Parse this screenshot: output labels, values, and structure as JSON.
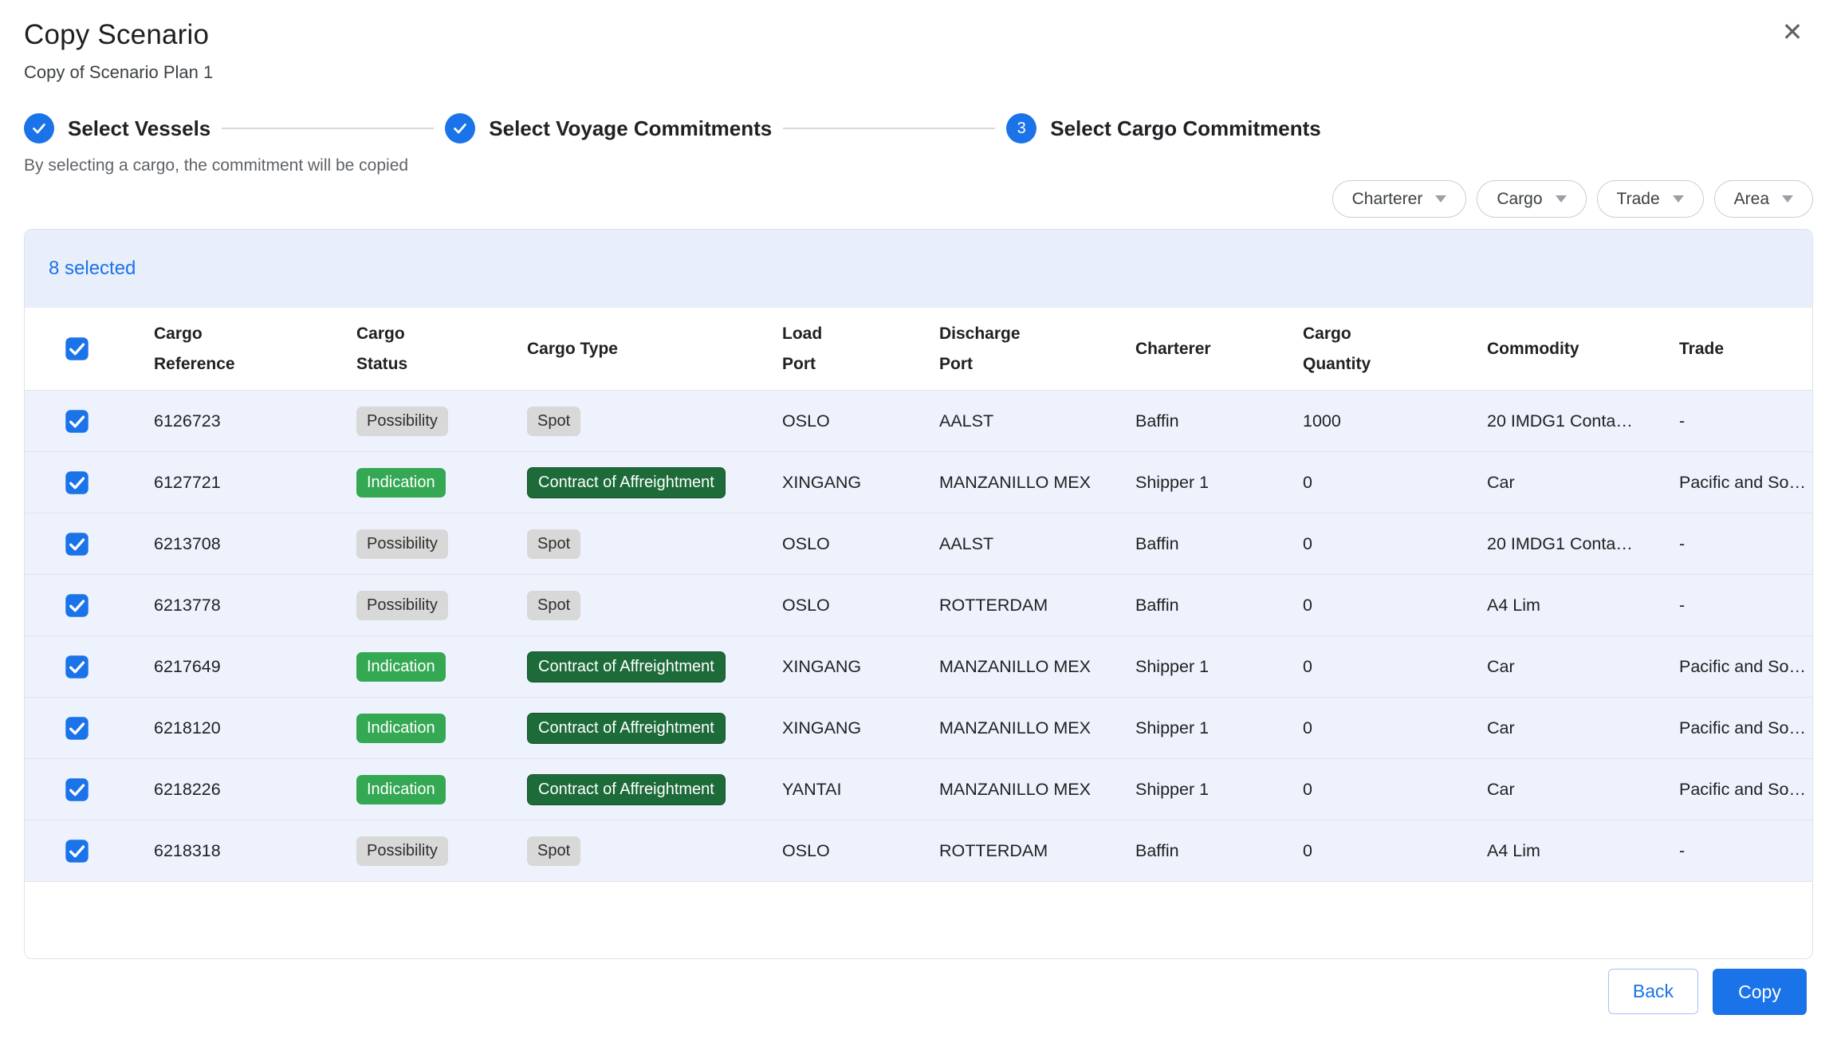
{
  "modal": {
    "title": "Copy Scenario",
    "subtitle": "Copy of Scenario Plan 1",
    "close_glyph": "✕"
  },
  "stepper": {
    "steps": [
      {
        "label": "Select Vessels",
        "indicator": "check",
        "state": "complete"
      },
      {
        "label": "Select Voyage Commitments",
        "indicator": "check",
        "state": "complete"
      },
      {
        "label": "Select Cargo Commitments",
        "indicator": "3",
        "state": "active"
      }
    ]
  },
  "helper_text": "By selecting a cargo, the commitment will be copied",
  "filters": [
    {
      "label": "Charterer"
    },
    {
      "label": "Cargo"
    },
    {
      "label": "Trade"
    },
    {
      "label": "Area"
    }
  ],
  "selection_summary": "8 selected",
  "table": {
    "select_all_checked": true,
    "columns": [
      {
        "line1": "Cargo",
        "line2": "Reference"
      },
      {
        "line1": "Cargo",
        "line2": "Status"
      },
      {
        "line1": "Cargo Type",
        "line2": ""
      },
      {
        "line1": "Load",
        "line2": "Port"
      },
      {
        "line1": "Discharge",
        "line2": "Port"
      },
      {
        "line1": "Charterer",
        "line2": ""
      },
      {
        "line1": "Cargo",
        "line2": "Quantity"
      },
      {
        "line1": "Commodity",
        "line2": ""
      },
      {
        "line1": "Trade",
        "line2": ""
      }
    ],
    "rows": [
      {
        "selected": true,
        "reference": "6126723",
        "status": "Possibility",
        "status_variant": "grey",
        "type": "Spot",
        "type_variant": "grey",
        "load_port": "OSLO",
        "discharge_port": "AALST",
        "charterer": "Baffin",
        "quantity": "1000",
        "commodity": "20 IMDG1 Conta…",
        "trade": "-"
      },
      {
        "selected": true,
        "reference": "6127721",
        "status": "Indication",
        "status_variant": "green",
        "type": "Contract of Affreightment",
        "type_variant": "dark-green",
        "load_port": "XINGANG",
        "discharge_port": "MANZANILLO MEX",
        "charterer": "Shipper 1",
        "quantity": "0",
        "commodity": "Car",
        "trade": "Pacific and So…"
      },
      {
        "selected": true,
        "reference": "6213708",
        "status": "Possibility",
        "status_variant": "grey",
        "type": "Spot",
        "type_variant": "grey",
        "load_port": "OSLO",
        "discharge_port": "AALST",
        "charterer": "Baffin",
        "quantity": "0",
        "commodity": "20 IMDG1 Conta…",
        "trade": "-"
      },
      {
        "selected": true,
        "reference": "6213778",
        "status": "Possibility",
        "status_variant": "grey",
        "type": "Spot",
        "type_variant": "grey",
        "load_port": "OSLO",
        "discharge_port": "ROTTERDAM",
        "charterer": "Baffin",
        "quantity": "0",
        "commodity": "A4 Lim",
        "trade": "-"
      },
      {
        "selected": true,
        "reference": "6217649",
        "status": "Indication",
        "status_variant": "green",
        "type": "Contract of Affreightment",
        "type_variant": "dark-green",
        "load_port": "XINGANG",
        "discharge_port": "MANZANILLO MEX",
        "charterer": "Shipper 1",
        "quantity": "0",
        "commodity": "Car",
        "trade": "Pacific and So…"
      },
      {
        "selected": true,
        "reference": "6218120",
        "status": "Indication",
        "status_variant": "green",
        "type": "Contract of Affreightment",
        "type_variant": "dark-green",
        "load_port": "XINGANG",
        "discharge_port": "MANZANILLO MEX",
        "charterer": "Shipper 1",
        "quantity": "0",
        "commodity": "Car",
        "trade": "Pacific and So…"
      },
      {
        "selected": true,
        "reference": "6218226",
        "status": "Indication",
        "status_variant": "green",
        "type": "Contract of Affreightment",
        "type_variant": "dark-green",
        "load_port": "YANTAI",
        "discharge_port": "MANZANILLO MEX",
        "charterer": "Shipper 1",
        "quantity": "0",
        "commodity": "Car",
        "trade": "Pacific and So…"
      },
      {
        "selected": true,
        "reference": "6218318",
        "status": "Possibility",
        "status_variant": "grey",
        "type": "Spot",
        "type_variant": "grey",
        "load_port": "OSLO",
        "discharge_port": "ROTTERDAM",
        "charterer": "Baffin",
        "quantity": "0",
        "commodity": "A4 Lim",
        "trade": "-"
      }
    ]
  },
  "footer": {
    "back_label": "Back",
    "copy_label": "Copy"
  },
  "colors": {
    "primary_blue": "#1a73e8",
    "selection_band_bg": "#e9eefb",
    "row_selected_bg": "#eef2fc",
    "badge_grey_bg": "#d8d8d8",
    "badge_green_bg": "#34a853",
    "badge_dark_green_bg": "#1e6b3a"
  }
}
